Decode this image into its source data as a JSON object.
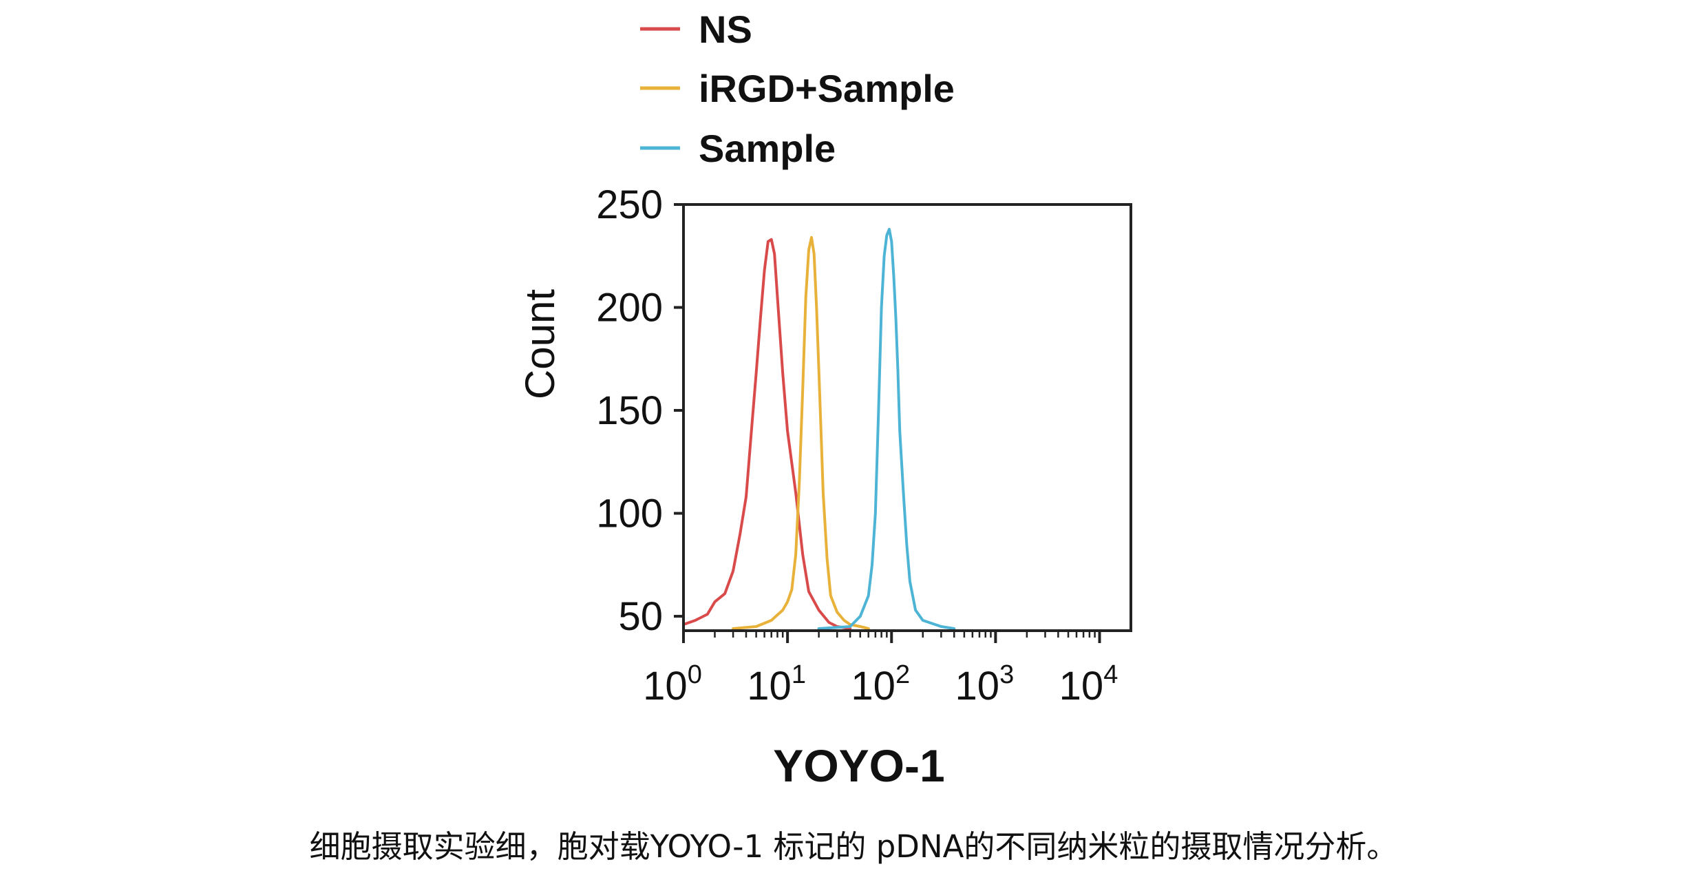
{
  "chart_data": {
    "type": "line",
    "title": "",
    "xlabel": "YOYO-1",
    "ylabel": "Count",
    "x_scale": "log",
    "xlim": [
      1,
      20000
    ],
    "ylim": [
      43,
      250
    ],
    "x_ticks": [
      {
        "value": 1,
        "base": "10",
        "exp": "0"
      },
      {
        "value": 10,
        "base": "10",
        "exp": "1"
      },
      {
        "value": 100,
        "base": "10",
        "exp": "2"
      },
      {
        "value": 1000,
        "base": "10",
        "exp": "3"
      },
      {
        "value": 10000,
        "base": "10",
        "exp": "4"
      }
    ],
    "y_ticks": [
      50,
      100,
      150,
      200,
      250
    ],
    "grid": false,
    "legend_position": "top-left",
    "series": [
      {
        "name": "NS",
        "color": "#d94a4a",
        "x": [
          1,
          1.3,
          1.7,
          2,
          2.5,
          3,
          3.5,
          4,
          4.5,
          5,
          5.5,
          6,
          6.5,
          7,
          7.5,
          8,
          9,
          10,
          12,
          14,
          16,
          20,
          25,
          30,
          40
        ],
        "y": [
          46,
          48,
          51,
          57,
          61,
          72,
          90,
          108,
          140,
          168,
          195,
          218,
          232,
          233,
          226,
          205,
          168,
          140,
          110,
          80,
          62,
          53,
          47,
          45,
          44
        ]
      },
      {
        "name": "iRGD+Sample",
        "color": "#e8b23a",
        "x": [
          3,
          5,
          7,
          9,
          10,
          11,
          12,
          13,
          14,
          15,
          16,
          17,
          18,
          19,
          20,
          21,
          22,
          24,
          26,
          30,
          35,
          40,
          50,
          60
        ],
        "y": [
          44,
          45,
          48,
          53,
          57,
          63,
          80,
          115,
          160,
          205,
          228,
          234,
          226,
          200,
          170,
          140,
          110,
          78,
          60,
          52,
          48,
          46,
          45,
          44
        ]
      },
      {
        "name": "Sample",
        "color": "#4db4d6",
        "x": [
          20,
          40,
          50,
          60,
          65,
          70,
          75,
          80,
          85,
          90,
          95,
          100,
          105,
          110,
          115,
          120,
          130,
          140,
          150,
          170,
          200,
          300,
          400
        ],
        "y": [
          44,
          45,
          50,
          60,
          75,
          100,
          150,
          200,
          225,
          235,
          238,
          232,
          215,
          195,
          170,
          140,
          110,
          85,
          67,
          53,
          48,
          45,
          44
        ]
      }
    ]
  },
  "caption": "细胞摄取实验细，胞对载YOYO-1 标记的 pDNA的不同纳米粒的摄取情况分析。"
}
